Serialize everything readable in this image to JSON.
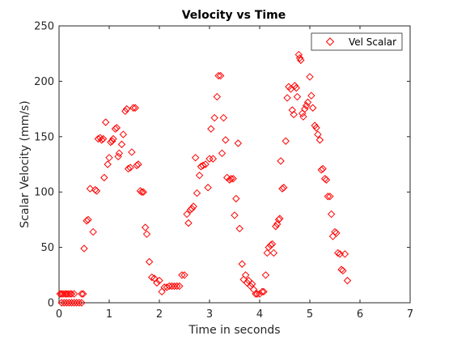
{
  "chart_data": {
    "type": "scatter",
    "title": "Velocity vs Time",
    "xlabel": "Time in seconds",
    "ylabel": "Scalar Velocity (mm/s)",
    "xlim": [
      0,
      7
    ],
    "ylim": [
      0,
      250
    ],
    "xticks": [
      "0",
      "1",
      "2",
      "3",
      "4",
      "5",
      "6",
      "7"
    ],
    "yticks": [
      "0",
      "50",
      "100",
      "150",
      "200",
      "250"
    ],
    "grid": false,
    "legend_position": "top-right",
    "marker": "diamond",
    "colors": {
      "series": "#ff0000",
      "axes": "#262626",
      "background": "#ffffff"
    },
    "series": [
      {
        "name": "Vel Scalar",
        "points": [
          [
            0.02,
            8
          ],
          [
            0.05,
            8
          ],
          [
            0.08,
            8
          ],
          [
            0.12,
            8
          ],
          [
            0.15,
            8
          ],
          [
            0.18,
            8
          ],
          [
            0.22,
            8
          ],
          [
            0.25,
            8
          ],
          [
            0.3,
            8
          ],
          [
            0.45,
            8
          ],
          [
            0.48,
            8
          ],
          [
            0.05,
            0
          ],
          [
            0.1,
            0
          ],
          [
            0.15,
            0
          ],
          [
            0.2,
            0
          ],
          [
            0.25,
            0
          ],
          [
            0.3,
            0
          ],
          [
            0.35,
            0
          ],
          [
            0.4,
            0
          ],
          [
            0.45,
            0
          ],
          [
            0.5,
            49
          ],
          [
            0.55,
            74
          ],
          [
            0.58,
            75
          ],
          [
            0.62,
            103
          ],
          [
            0.68,
            64
          ],
          [
            0.72,
            102
          ],
          [
            0.75,
            101
          ],
          [
            0.78,
            148
          ],
          [
            0.82,
            149
          ],
          [
            0.85,
            147
          ],
          [
            0.88,
            148
          ],
          [
            0.9,
            113
          ],
          [
            0.93,
            163
          ],
          [
            0.97,
            125
          ],
          [
            1.0,
            131
          ],
          [
            1.03,
            145
          ],
          [
            1.06,
            146
          ],
          [
            1.08,
            148
          ],
          [
            1.12,
            157
          ],
          [
            1.15,
            158
          ],
          [
            1.18,
            132
          ],
          [
            1.2,
            135
          ],
          [
            1.25,
            143
          ],
          [
            1.28,
            152
          ],
          [
            1.32,
            173
          ],
          [
            1.35,
            175
          ],
          [
            1.38,
            121
          ],
          [
            1.42,
            122
          ],
          [
            1.45,
            136
          ],
          [
            1.48,
            176
          ],
          [
            1.52,
            176
          ],
          [
            1.55,
            124
          ],
          [
            1.58,
            125
          ],
          [
            1.62,
            101
          ],
          [
            1.65,
            100
          ],
          [
            1.68,
            100
          ],
          [
            1.72,
            68
          ],
          [
            1.75,
            62
          ],
          [
            1.8,
            37
          ],
          [
            1.85,
            23
          ],
          [
            1.9,
            22
          ],
          [
            1.95,
            18
          ],
          [
            2.0,
            20
          ],
          [
            2.05,
            10
          ],
          [
            2.1,
            14
          ],
          [
            2.15,
            14
          ],
          [
            2.2,
            15
          ],
          [
            2.25,
            15
          ],
          [
            2.3,
            15
          ],
          [
            2.35,
            15
          ],
          [
            2.4,
            15
          ],
          [
            2.45,
            25
          ],
          [
            2.5,
            25
          ],
          [
            2.55,
            80
          ],
          [
            2.58,
            72
          ],
          [
            2.62,
            84
          ],
          [
            2.65,
            85
          ],
          [
            2.68,
            87
          ],
          [
            2.72,
            131
          ],
          [
            2.75,
            99
          ],
          [
            2.8,
            115
          ],
          [
            2.83,
            123
          ],
          [
            2.87,
            124
          ],
          [
            2.92,
            125
          ],
          [
            2.97,
            104
          ],
          [
            3.0,
            130
          ],
          [
            3.03,
            157
          ],
          [
            3.07,
            130
          ],
          [
            3.1,
            167
          ],
          [
            3.15,
            186
          ],
          [
            3.18,
            205
          ],
          [
            3.22,
            205
          ],
          [
            3.25,
            135
          ],
          [
            3.28,
            167
          ],
          [
            3.32,
            147
          ],
          [
            3.35,
            113
          ],
          [
            3.4,
            111
          ],
          [
            3.43,
            112
          ],
          [
            3.47,
            112
          ],
          [
            3.5,
            79
          ],
          [
            3.53,
            94
          ],
          [
            3.57,
            144
          ],
          [
            3.6,
            67
          ],
          [
            3.65,
            35
          ],
          [
            3.68,
            21
          ],
          [
            3.72,
            25
          ],
          [
            3.75,
            18
          ],
          [
            3.78,
            20
          ],
          [
            3.82,
            15
          ],
          [
            3.85,
            17
          ],
          [
            3.88,
            12
          ],
          [
            3.92,
            8
          ],
          [
            3.95,
            8
          ],
          [
            4.0,
            8
          ],
          [
            4.05,
            10
          ],
          [
            4.08,
            10
          ],
          [
            4.12,
            25
          ],
          [
            4.15,
            45
          ],
          [
            4.18,
            50
          ],
          [
            4.22,
            52
          ],
          [
            4.25,
            53
          ],
          [
            4.28,
            45
          ],
          [
            4.32,
            69
          ],
          [
            4.35,
            71
          ],
          [
            4.38,
            75
          ],
          [
            4.4,
            76
          ],
          [
            4.42,
            128
          ],
          [
            4.45,
            103
          ],
          [
            4.48,
            104
          ],
          [
            4.52,
            146
          ],
          [
            4.55,
            185
          ],
          [
            4.58,
            195
          ],
          [
            4.62,
            193
          ],
          [
            4.65,
            174
          ],
          [
            4.68,
            170
          ],
          [
            4.7,
            196
          ],
          [
            4.73,
            194
          ],
          [
            4.75,
            186
          ],
          [
            4.78,
            224
          ],
          [
            4.8,
            221
          ],
          [
            4.82,
            219
          ],
          [
            4.85,
            171
          ],
          [
            4.87,
            168
          ],
          [
            4.9,
            175
          ],
          [
            4.93,
            178
          ],
          [
            4.96,
            181
          ],
          [
            5.0,
            204
          ],
          [
            5.03,
            187
          ],
          [
            5.06,
            176
          ],
          [
            5.1,
            160
          ],
          [
            5.13,
            158
          ],
          [
            5.16,
            152
          ],
          [
            5.2,
            147
          ],
          [
            5.23,
            120
          ],
          [
            5.26,
            121
          ],
          [
            5.3,
            112
          ],
          [
            5.33,
            111
          ],
          [
            5.36,
            96
          ],
          [
            5.4,
            96
          ],
          [
            5.43,
            80
          ],
          [
            5.46,
            60
          ],
          [
            5.5,
            64
          ],
          [
            5.53,
            63
          ],
          [
            5.56,
            45
          ],
          [
            5.6,
            44
          ],
          [
            5.63,
            30
          ],
          [
            5.66,
            29
          ],
          [
            5.7,
            44
          ],
          [
            5.75,
            20
          ]
        ]
      }
    ]
  }
}
